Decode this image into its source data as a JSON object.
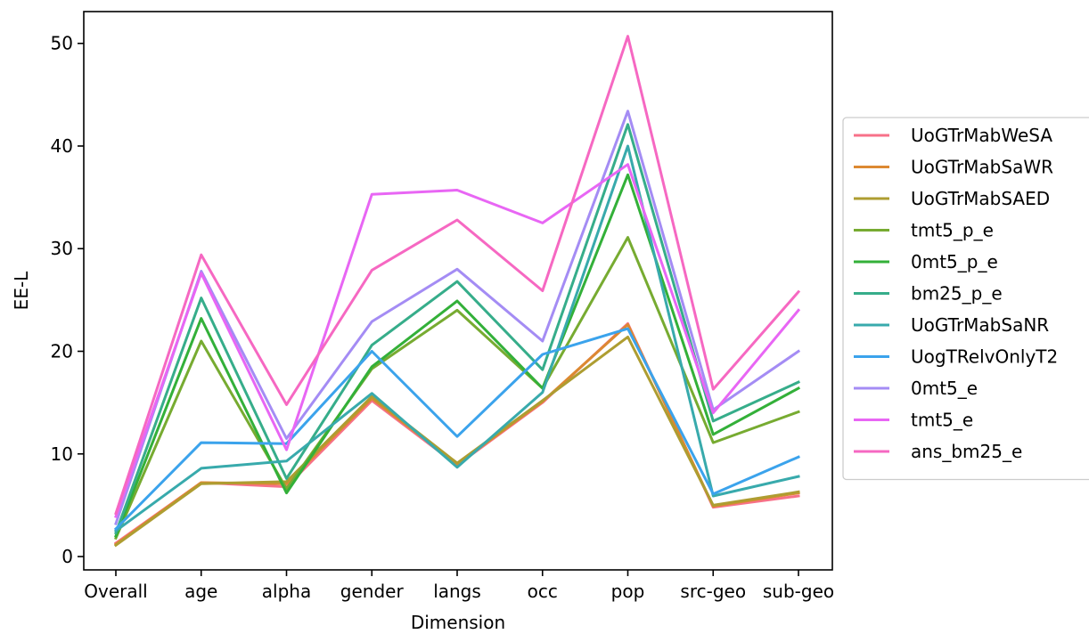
{
  "chart_data": {
    "type": "line",
    "xlabel": "Dimension",
    "ylabel": "EE-L",
    "ylim": [
      -1.3,
      53.1
    ],
    "yticks": [
      0,
      10,
      20,
      30,
      40,
      50
    ],
    "grid": false,
    "legend_position": "center-right-outside",
    "categories": [
      "Overall",
      "age",
      "alpha",
      "gender",
      "langs",
      "occ",
      "pop",
      "src-geo",
      "sub-geo"
    ],
    "series": [
      {
        "name": "UoGTrMabWeSA",
        "color": "#f77189",
        "values": [
          1.3,
          7.2,
          6.8,
          15.2,
          8.9,
          15.0,
          22.7,
          4.8,
          5.9
        ]
      },
      {
        "name": "UoGTrMabSaWR",
        "color": "#dc8932",
        "values": [
          1.2,
          7.2,
          7.1,
          15.4,
          9.0,
          15.1,
          22.6,
          4.9,
          6.2
        ]
      },
      {
        "name": "UoGTrMabSAED",
        "color": "#ae9d31",
        "values": [
          1.1,
          7.1,
          7.3,
          15.6,
          9.1,
          15.2,
          21.4,
          5.0,
          6.3
        ]
      },
      {
        "name": "tmt5_p_e",
        "color": "#77ab31",
        "values": [
          1.8,
          21.0,
          6.6,
          18.3,
          24.0,
          16.4,
          31.1,
          11.1,
          14.1
        ]
      },
      {
        "name": "0mt5_p_e",
        "color": "#33b039",
        "values": [
          2.0,
          23.2,
          6.2,
          18.5,
          24.9,
          16.4,
          37.2,
          11.9,
          16.4
        ]
      },
      {
        "name": "bm25_p_e",
        "color": "#36ad8a",
        "values": [
          2.3,
          25.2,
          7.6,
          20.6,
          26.8,
          18.2,
          42.1,
          13.2,
          17.0
        ]
      },
      {
        "name": "UoGTrMabSaNR",
        "color": "#38aaac",
        "values": [
          2.5,
          8.6,
          9.3,
          15.9,
          8.7,
          16.0,
          40.0,
          5.9,
          7.8
        ]
      },
      {
        "name": "UogTRelvOnlyT2",
        "color": "#3ba3ec",
        "values": [
          2.7,
          11.1,
          11.0,
          20.0,
          11.7,
          19.7,
          22.2,
          6.1,
          9.7
        ]
      },
      {
        "name": "0mt5_e",
        "color": "#a48cf4",
        "values": [
          3.2,
          27.8,
          11.5,
          22.9,
          28.0,
          21.0,
          43.4,
          14.3,
          20.0
        ]
      },
      {
        "name": "tmt5_e",
        "color": "#e866f4",
        "values": [
          3.9,
          27.6,
          10.4,
          35.3,
          35.7,
          32.5,
          38.2,
          14.0,
          24.0
        ]
      },
      {
        "name": "ans_bm25_e",
        "color": "#f668c2",
        "values": [
          4.2,
          29.4,
          14.8,
          27.9,
          32.8,
          25.9,
          50.7,
          16.3,
          25.8
        ]
      }
    ]
  }
}
